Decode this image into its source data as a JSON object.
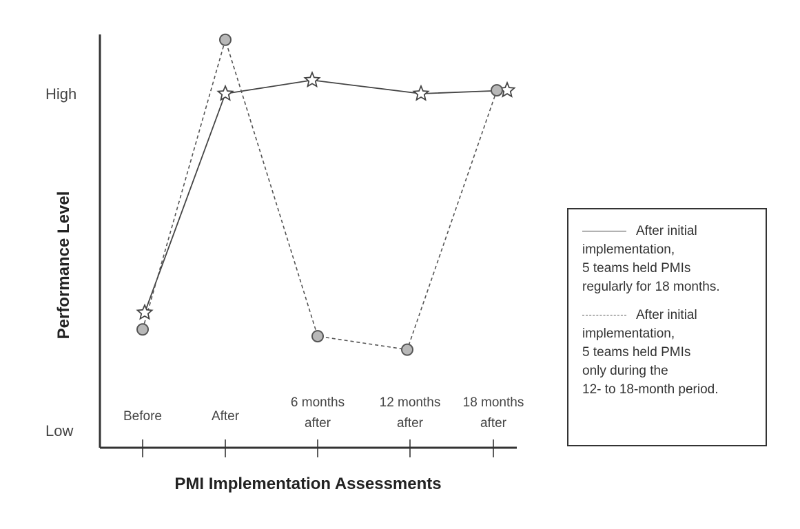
{
  "chart_data": {
    "type": "line",
    "title": "",
    "xlabel": "PMI Implementation Assessments",
    "ylabel": "Performance Level",
    "categories": [
      "Before",
      "After",
      "6 months after",
      "12 months after",
      "18 months after"
    ],
    "category_lines": [
      [
        "Before"
      ],
      [
        "After"
      ],
      [
        "6 months",
        "after"
      ],
      [
        "12 months",
        "after"
      ],
      [
        "18 months",
        "after"
      ]
    ],
    "y_ticks": [
      "High",
      "Low"
    ],
    "ylim": [
      0,
      1
    ],
    "y_tick_values": [
      1,
      0
    ],
    "grid": false,
    "legend_placement": "right",
    "series": [
      {
        "marker": "star",
        "line_style": "solid",
        "values": [
          0.35,
          1.0,
          1.04,
          1.0,
          1.01
        ],
        "legend_lines": [
          "After initial",
          "implementation,",
          "5 teams held PMIs",
          "regularly for 18 months."
        ]
      },
      {
        "marker": "circle",
        "line_style": "dashed",
        "values": [
          0.3,
          1.16,
          0.28,
          0.24,
          1.01
        ],
        "legend_lines": [
          "After initial",
          "implementation,",
          "5 teams held PMIs",
          "only during the",
          "12- to 18-month period."
        ]
      }
    ]
  }
}
